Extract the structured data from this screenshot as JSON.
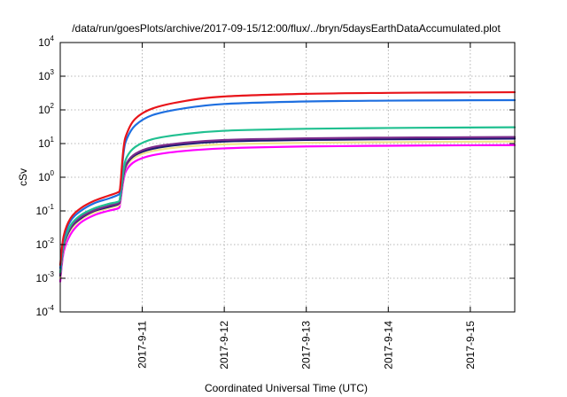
{
  "chart_data": {
    "type": "line",
    "title": "/data/run/goesPlots/archive/2017-09-15/12:00/flux/../bryn/5daysEarthDataAccumulated.plot",
    "xlabel": "Coordinated Universal Time (UTC)",
    "ylabel": "cSv",
    "x_scale": "time",
    "y_scale": "log",
    "xlim": [
      "2017-09-10T00:00",
      "2017-09-15T13:00"
    ],
    "ylim": [
      0.0001,
      10000
    ],
    "x_ticks": [
      "2017-9-11",
      "2017-9-12",
      "2017-9-13",
      "2017-9-14",
      "2017-9-15"
    ],
    "y_ticks": [
      {
        "base": "10",
        "exp": "-4",
        "value": 0.0001
      },
      {
        "base": "10",
        "exp": "-3",
        "value": 0.001
      },
      {
        "base": "10",
        "exp": "-2",
        "value": 0.01
      },
      {
        "base": "10",
        "exp": "-1",
        "value": 0.1
      },
      {
        "base": "10",
        "exp": "0",
        "value": 1
      },
      {
        "base": "10",
        "exp": "1",
        "value": 10
      },
      {
        "base": "10",
        "exp": "2",
        "value": 100
      },
      {
        "base": "10",
        "exp": "3",
        "value": 1000
      },
      {
        "base": "10",
        "exp": "4",
        "value": 10000
      }
    ],
    "grid": true,
    "legend": "none",
    "series": [
      {
        "color": "#ff00ff",
        "x": [
          "2017-09-10T00:00",
          "2017-09-10T01:00",
          "2017-09-10T03:00",
          "2017-09-10T06:00",
          "2017-09-10T10:00",
          "2017-09-10T14:00",
          "2017-09-10T17:00",
          "2017-09-10T17:30",
          "2017-09-10T18:30",
          "2017-09-10T19:30",
          "2017-09-10T22:00",
          "2017-09-11T03:00",
          "2017-09-11T12:00",
          "2017-09-12T00:00",
          "2017-09-13T00:00",
          "2017-09-14T00:00",
          "2017-09-15T00:00",
          "2017-09-15T13:00"
        ],
        "y": [
          0.0008,
          0.006,
          0.02,
          0.045,
          0.075,
          0.1,
          0.12,
          0.16,
          0.8,
          1.7,
          3.0,
          4.5,
          6.0,
          7.2,
          8.2,
          8.6,
          8.9,
          9.0
        ]
      },
      {
        "color": "#f0e68c",
        "x": [
          "2017-09-10T00:00",
          "2017-09-10T01:00",
          "2017-09-10T03:00",
          "2017-09-10T06:00",
          "2017-09-10T10:00",
          "2017-09-10T14:00",
          "2017-09-10T17:00",
          "2017-09-10T17:30",
          "2017-09-10T18:30",
          "2017-09-10T19:30",
          "2017-09-10T22:00",
          "2017-09-11T03:00",
          "2017-09-11T12:00",
          "2017-09-12T00:00",
          "2017-09-13T00:00",
          "2017-09-14T00:00",
          "2017-09-15T00:00",
          "2017-09-15T13:00"
        ],
        "y": [
          0.001,
          0.008,
          0.026,
          0.055,
          0.09,
          0.12,
          0.145,
          0.19,
          1.0,
          2.2,
          4.0,
          6.0,
          8.0,
          9.5,
          10.5,
          11.0,
          11.3,
          11.5
        ]
      },
      {
        "color": "#191970",
        "x": [
          "2017-09-10T00:00",
          "2017-09-10T01:00",
          "2017-09-10T03:00",
          "2017-09-10T06:00",
          "2017-09-10T10:00",
          "2017-09-10T14:00",
          "2017-09-10T17:00",
          "2017-09-10T17:30",
          "2017-09-10T18:30",
          "2017-09-10T19:30",
          "2017-09-10T22:00",
          "2017-09-11T03:00",
          "2017-09-11T12:00",
          "2017-09-12T00:00",
          "2017-09-13T00:00",
          "2017-09-14T00:00",
          "2017-09-15T00:00",
          "2017-09-15T13:00"
        ],
        "y": [
          0.0012,
          0.009,
          0.03,
          0.06,
          0.1,
          0.13,
          0.16,
          0.21,
          1.1,
          2.5,
          4.6,
          7.0,
          9.5,
          11.5,
          12.8,
          13.4,
          13.8,
          14.0
        ]
      },
      {
        "color": "#7b2c8c",
        "x": [
          "2017-09-10T00:00",
          "2017-09-10T01:00",
          "2017-09-10T03:00",
          "2017-09-10T06:00",
          "2017-09-10T10:00",
          "2017-09-10T14:00",
          "2017-09-10T17:00",
          "2017-09-10T17:30",
          "2017-09-10T18:30",
          "2017-09-10T19:30",
          "2017-09-10T22:00",
          "2017-09-11T03:00",
          "2017-09-11T12:00",
          "2017-09-12T00:00",
          "2017-09-13T00:00",
          "2017-09-14T00:00",
          "2017-09-15T00:00",
          "2017-09-15T13:00"
        ],
        "y": [
          0.0013,
          0.0095,
          0.032,
          0.065,
          0.105,
          0.14,
          0.17,
          0.22,
          1.15,
          2.7,
          5.0,
          7.8,
          10.5,
          12.8,
          14.3,
          15.0,
          15.4,
          15.6
        ]
      },
      {
        "color": "#20c090",
        "x": [
          "2017-09-10T00:00",
          "2017-09-10T01:00",
          "2017-09-10T03:00",
          "2017-09-10T06:00",
          "2017-09-10T10:00",
          "2017-09-10T14:00",
          "2017-09-10T17:00",
          "2017-09-10T17:30",
          "2017-09-10T18:30",
          "2017-09-10T19:30",
          "2017-09-10T22:00",
          "2017-09-11T03:00",
          "2017-09-11T12:00",
          "2017-09-12T00:00",
          "2017-09-13T00:00",
          "2017-09-14T00:00",
          "2017-09-15T00:00",
          "2017-09-15T13:00"
        ],
        "y": [
          0.0015,
          0.011,
          0.037,
          0.075,
          0.12,
          0.16,
          0.19,
          0.25,
          1.6,
          4.0,
          8.0,
          13.5,
          19.0,
          24.0,
          27.5,
          29.0,
          30.0,
          30.5
        ]
      },
      {
        "color": "#1e6fe0",
        "x": [
          "2017-09-10T00:00",
          "2017-09-10T01:00",
          "2017-09-10T03:00",
          "2017-09-10T06:00",
          "2017-09-10T10:00",
          "2017-09-10T14:00",
          "2017-09-10T17:00",
          "2017-09-10T17:30",
          "2017-09-10T18:30",
          "2017-09-10T19:30",
          "2017-09-10T22:00",
          "2017-09-11T03:00",
          "2017-09-11T12:00",
          "2017-09-12T00:00",
          "2017-09-13T00:00",
          "2017-09-14T00:00",
          "2017-09-15T00:00",
          "2017-09-15T13:00"
        ],
        "y": [
          0.002,
          0.015,
          0.05,
          0.1,
          0.17,
          0.23,
          0.3,
          0.38,
          5.0,
          14.0,
          35.0,
          70.0,
          110.0,
          150.0,
          178.0,
          188.0,
          193.0,
          195.0
        ]
      },
      {
        "color": "#e8141a",
        "x": [
          "2017-09-10T00:00",
          "2017-09-10T01:00",
          "2017-09-10T03:00",
          "2017-09-10T06:00",
          "2017-09-10T10:00",
          "2017-09-10T14:00",
          "2017-09-10T17:00",
          "2017-09-10T17:30",
          "2017-09-10T18:30",
          "2017-09-10T19:30",
          "2017-09-10T22:00",
          "2017-09-11T03:00",
          "2017-09-11T12:00",
          "2017-09-12T00:00",
          "2017-09-13T00:00",
          "2017-09-14T00:00",
          "2017-09-15T00:00",
          "2017-09-15T13:00"
        ],
        "y": [
          0.0025,
          0.018,
          0.06,
          0.12,
          0.2,
          0.28,
          0.36,
          0.46,
          7.0,
          20.0,
          55.0,
          110.0,
          180.0,
          250.0,
          300.0,
          320.0,
          330.0,
          335.0
        ]
      }
    ]
  }
}
